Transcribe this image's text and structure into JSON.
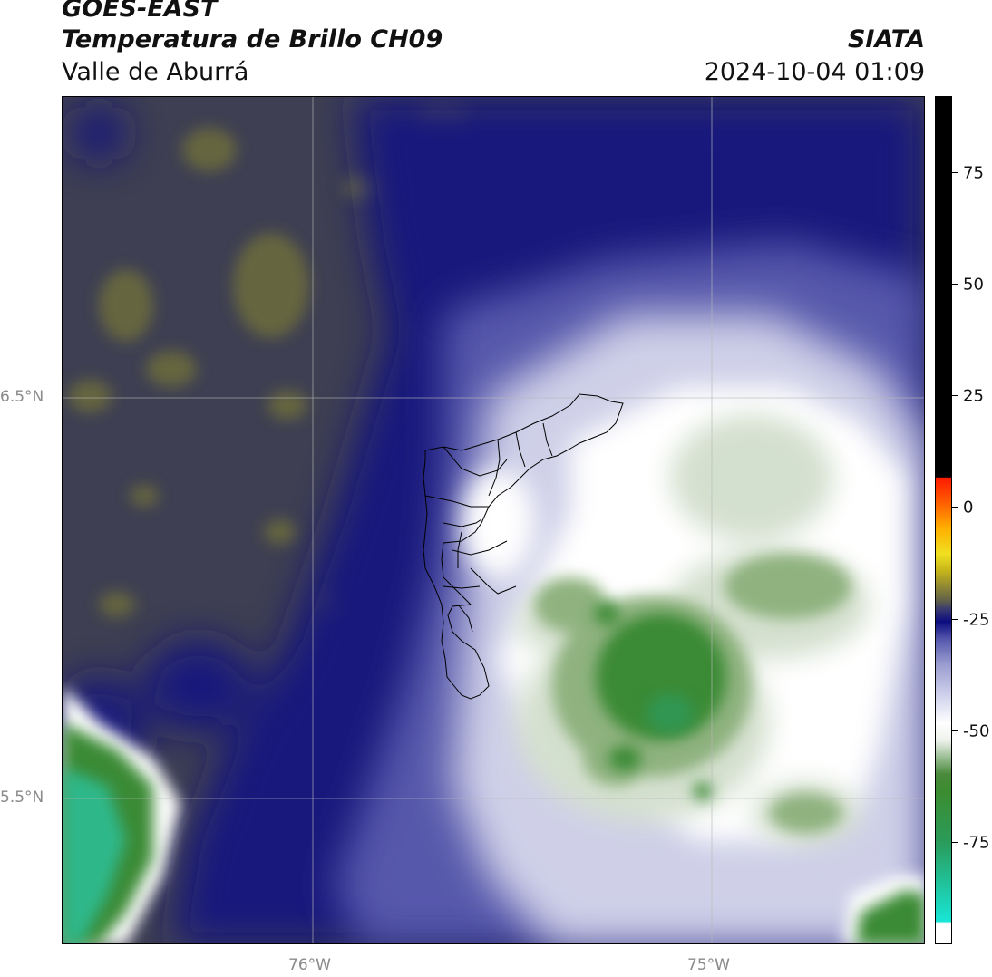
{
  "header": {
    "satellite": "GOES-EAST",
    "product": "Temperatura de Brillo CH09",
    "region": "Valle de Aburrá",
    "brand": "SIATA",
    "datetime": "2024-10-04 01:09"
  },
  "map": {
    "lat_labels": [
      "6.5°N",
      "5.5°N"
    ],
    "lon_labels": [
      "76°W",
      "75°W"
    ],
    "colors": {
      "dark_gray": "#3e3f52",
      "olive": "#6b6a3e",
      "navy": "#15157f",
      "mid_blue": "#5a5cae",
      "light_lavender": "#cfd0e8",
      "white": "#ffffff",
      "pale_green": "#d4e0cf",
      "green": "#3a8a35",
      "teal": "#2fb88a"
    }
  },
  "colorbar": {
    "tick_labels": [
      "75",
      "50",
      "25",
      "0",
      "-25",
      "-50",
      "-75"
    ],
    "stops": [
      {
        "color": "#ffffff"
      },
      {
        "color": "#18e6d6"
      },
      {
        "color": "#2a9b5a"
      },
      {
        "color": "#3c8c30"
      },
      {
        "color": "#eef2ec"
      },
      {
        "color": "#d4d6ee"
      },
      {
        "color": "#5456ac"
      },
      {
        "color": "#0c0c80"
      },
      {
        "color": "#60604a"
      },
      {
        "color": "#f0e020"
      },
      {
        "color": "#ff8a00"
      },
      {
        "color": "#ff1a00"
      },
      {
        "color": "#000000"
      }
    ]
  }
}
